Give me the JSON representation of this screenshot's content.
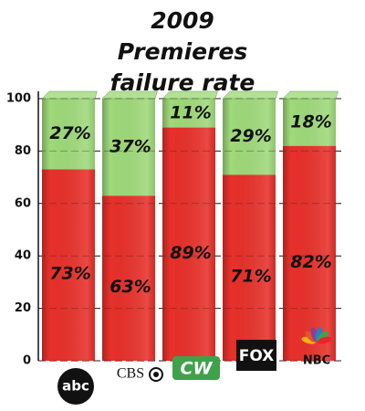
{
  "chart_data": {
    "type": "stacked-bar",
    "title": "2009 Premieres failure rate",
    "categories": [
      "abc",
      "CBS",
      "CW",
      "FOX",
      "NBC"
    ],
    "series": [
      {
        "color": "#e8302a",
        "values": [
          73,
          63,
          89,
          71,
          82
        ],
        "value_labels": [
          "73%",
          "63%",
          "89%",
          "71%",
          "82%"
        ]
      },
      {
        "color": "#9fd97a",
        "values": [
          27,
          37,
          11,
          29,
          18
        ],
        "value_labels": [
          "27%",
          "37%",
          "11%",
          "29%",
          "18%"
        ]
      }
    ],
    "ylim": [
      0,
      100
    ],
    "yticks": [
      0,
      20,
      40,
      60,
      80,
      100
    ],
    "grid": true
  }
}
